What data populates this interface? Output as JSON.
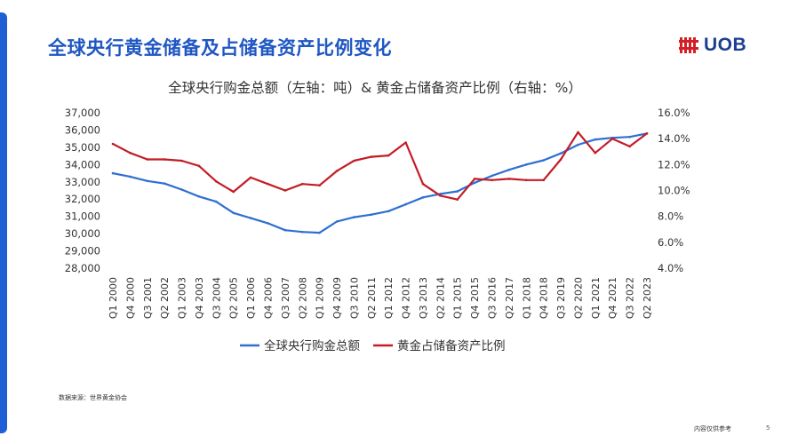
{
  "page": {
    "title": "全球央行黄金储备及占储备资产比例变化",
    "logo_text": "UOB",
    "source": "数据来源：世界黄金协会",
    "footer": "内容仅供参考",
    "page_number": "5"
  },
  "colors": {
    "accent": "#1f5fd6",
    "title": "#1f57c3",
    "series_left": "#2e6fd1",
    "series_right": "#c21d26",
    "logo": "#1d3f8f",
    "logo_mark": "#d32027"
  },
  "chart_data": {
    "type": "line",
    "title": "全球央行购金总额（左轴：吨）& 黄金占储备资产比例（右轴：%）",
    "x_tick_labels": [
      "Q1 2000",
      "Q4 2000",
      "Q3 2001",
      "Q2 2002",
      "Q1 2003",
      "Q4 2003",
      "Q3 2004",
      "Q2 2005",
      "Q1 2006",
      "Q4 2006",
      "Q3 2007",
      "Q2 2008",
      "Q1 2009",
      "Q4 2009",
      "Q3 2010",
      "Q2 2011",
      "Q1 2012",
      "Q4 2012",
      "Q3 2013",
      "Q2 2014",
      "Q1 2015",
      "Q4 2015",
      "Q3 2016",
      "Q2 2017",
      "Q1 2018",
      "Q4 2018",
      "Q3 2019",
      "Q2 2020",
      "Q1 2021",
      "Q4 2021",
      "Q3 2022",
      "Q2 2023"
    ],
    "y_left": {
      "ylim": [
        28000,
        37000
      ],
      "ticks": [
        "28,000",
        "29,000",
        "30,000",
        "31,000",
        "32,000",
        "33,000",
        "34,000",
        "35,000",
        "36,000",
        "37,000"
      ]
    },
    "y_right": {
      "ylim": [
        4,
        16
      ],
      "ticks": [
        "4.0%",
        "6.0%",
        "8.0%",
        "10.0%",
        "12.0%",
        "14.0%",
        "16.0%"
      ]
    },
    "legend_position": "bottom",
    "grid": false,
    "series": [
      {
        "name": "全球央行购金总额",
        "axis": "left",
        "color": "#2e6fd1",
        "points": [
          [
            "Q1 2000",
            33500
          ],
          [
            "Q4 2000",
            33300
          ],
          [
            "Q3 2001",
            33050
          ],
          [
            "Q2 2002",
            32900
          ],
          [
            "Q1 2003",
            32550
          ],
          [
            "Q4 2003",
            32150
          ],
          [
            "Q3 2004",
            31850
          ],
          [
            "Q2 2005",
            31200
          ],
          [
            "Q1 2006",
            30900
          ],
          [
            "Q4 2006",
            30600
          ],
          [
            "Q3 2007",
            30200
          ],
          [
            "Q2 2008",
            30100
          ],
          [
            "Q1 2009",
            30050
          ],
          [
            "Q4 2009",
            30700
          ],
          [
            "Q3 2010",
            30950
          ],
          [
            "Q2 2011",
            31100
          ],
          [
            "Q1 2012",
            31300
          ],
          [
            "Q4 2012",
            31700
          ],
          [
            "Q3 2013",
            32100
          ],
          [
            "Q2 2014",
            32300
          ],
          [
            "Q1 2015",
            32450
          ],
          [
            "Q4 2015",
            32950
          ],
          [
            "Q3 2016",
            33350
          ],
          [
            "Q2 2017",
            33700
          ],
          [
            "Q1 2018",
            34000
          ],
          [
            "Q4 2018",
            34250
          ],
          [
            "Q3 2019",
            34650
          ],
          [
            "Q2 2020",
            35150
          ],
          [
            "Q1 2021",
            35450
          ],
          [
            "Q4 2021",
            35550
          ],
          [
            "Q3 2022",
            35600
          ],
          [
            "Q2 2023",
            35800
          ]
        ]
      },
      {
        "name": "黄金占储备资产比例",
        "axis": "right",
        "color": "#c21d26",
        "points": [
          [
            "Q1 2000",
            13.6
          ],
          [
            "Q4 2000",
            12.9
          ],
          [
            "Q3 2001",
            12.4
          ],
          [
            "Q2 2002",
            12.4
          ],
          [
            "Q1 2003",
            12.3
          ],
          [
            "Q4 2003",
            11.9
          ],
          [
            "Q3 2004",
            10.7
          ],
          [
            "Q2 2005",
            9.9
          ],
          [
            "Q1 2006",
            11.0
          ],
          [
            "Q4 2006",
            10.5
          ],
          [
            "Q3 2007",
            10.0
          ],
          [
            "Q2 2008",
            10.5
          ],
          [
            "Q1 2009",
            10.4
          ],
          [
            "Q4 2009",
            11.5
          ],
          [
            "Q3 2010",
            12.3
          ],
          [
            "Q2 2011",
            12.6
          ],
          [
            "Q1 2012",
            12.7
          ],
          [
            "Q4 2012",
            13.7
          ],
          [
            "Q3 2013",
            10.5
          ],
          [
            "Q2 2014",
            9.6
          ],
          [
            "Q1 2015",
            9.3
          ],
          [
            "Q4 2015",
            10.9
          ],
          [
            "Q3 2016",
            10.8
          ],
          [
            "Q2 2017",
            10.9
          ],
          [
            "Q1 2018",
            10.8
          ],
          [
            "Q4 2018",
            10.8
          ],
          [
            "Q3 2019",
            12.4
          ],
          [
            "Q2 2020",
            14.5
          ],
          [
            "Q1 2021",
            12.9
          ],
          [
            "Q4 2021",
            14.0
          ],
          [
            "Q3 2022",
            13.4
          ],
          [
            "Q2 2023",
            14.4
          ]
        ]
      }
    ]
  }
}
